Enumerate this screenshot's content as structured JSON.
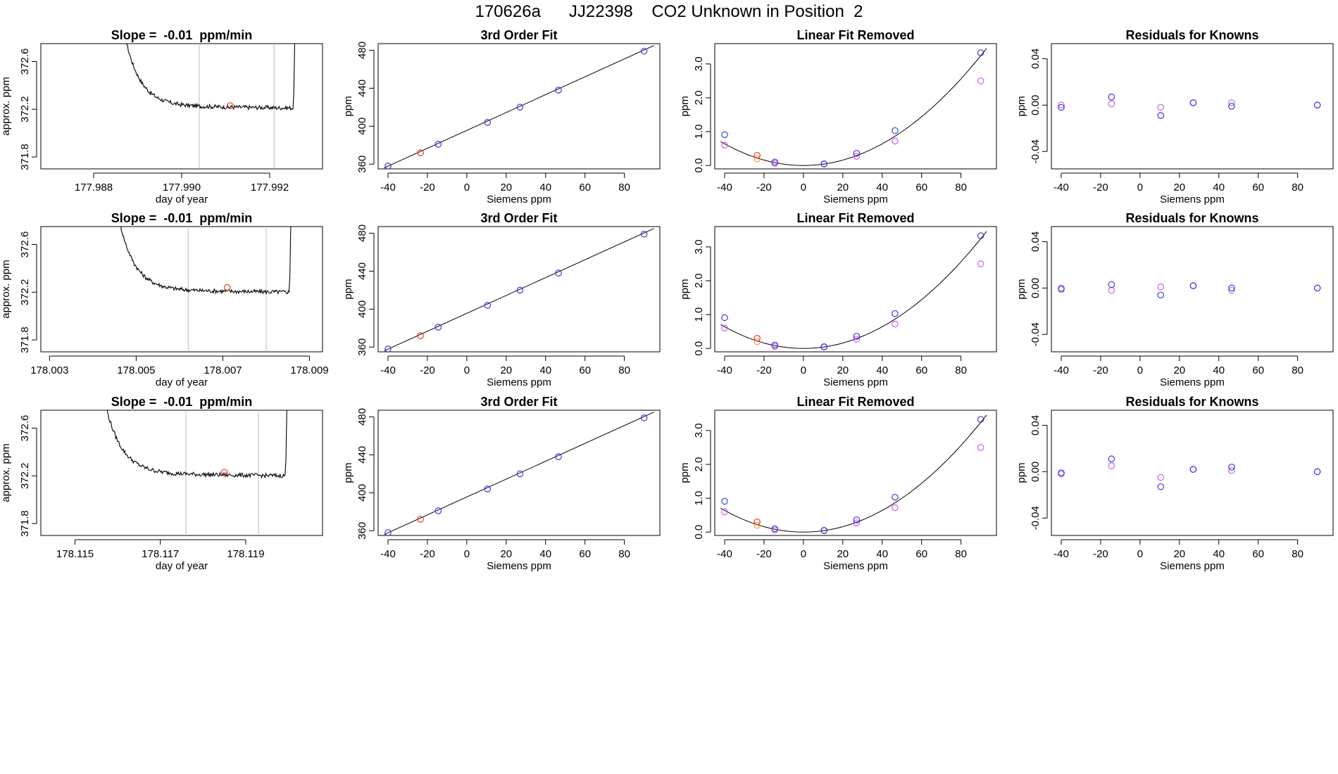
{
  "title": "170626a      JJ22398    CO2 Unknown in Position  2",
  "colors": {
    "line": "#000000",
    "unknown": "#e8392c",
    "known": "#3b3bdc",
    "magenta": "#d062e8",
    "orange": "#f5a04a",
    "vline": "#bdbdbd"
  },
  "chart_data": [
    {
      "row": 0,
      "panel": "timeseries",
      "type": "line",
      "title": "Slope =  -0.01  ppm/min",
      "xlabel": "day of year",
      "ylabel": "approx. ppm",
      "xlim": [
        177.9868,
        177.9932
      ],
      "ylim": [
        371.7,
        372.75
      ],
      "xticks": [
        177.988,
        177.99,
        177.992
      ],
      "xtick_labels": [
        "177.988",
        "177.990",
        "177.992"
      ],
      "yticks": [
        371.8,
        372.2,
        372.6
      ],
      "ytick_labels": [
        "371.8",
        "372.2",
        "372.6"
      ],
      "vlines": [
        177.9904,
        177.9921
      ],
      "t_start": 177.9887,
      "t_end": 177.9926,
      "level": 372.23,
      "marker": {
        "x": 177.9911,
        "y": 372.23
      }
    },
    {
      "row": 0,
      "panel": "fit",
      "type": "scatter",
      "title": "3rd Order Fit",
      "xlabel": "Siemens ppm",
      "ylabel": "ppm",
      "xlim": [
        -45,
        98
      ],
      "ylim": [
        355,
        487
      ],
      "xticks": [
        -40,
        -20,
        0,
        20,
        40,
        60,
        80
      ],
      "yticks": [
        360,
        400,
        440,
        480
      ],
      "line": [
        [
          -42,
          356
        ],
        [
          95,
          485
        ]
      ],
      "knowns": [
        {
          "x": -40,
          "y": 358
        },
        {
          "x": -14.5,
          "y": 381
        },
        {
          "x": 10.5,
          "y": 404
        },
        {
          "x": 27,
          "y": 420
        },
        {
          "x": 46.5,
          "y": 438
        },
        {
          "x": 90,
          "y": 479
        }
      ],
      "unknown": {
        "x": -23.5,
        "y": 372
      }
    },
    {
      "row": 0,
      "panel": "linear_removed",
      "type": "scatter",
      "title": "Linear Fit Removed",
      "xlabel": "Siemens ppm",
      "ylabel": "ppm",
      "xlim": [
        -45,
        98
      ],
      "ylim": [
        -0.1,
        3.6
      ],
      "xticks": [
        -40,
        -20,
        0,
        20,
        40,
        60,
        80
      ],
      "yticks": [
        0.0,
        1.0,
        2.0,
        3.0
      ],
      "ytick_labels": [
        "0.0",
        "1.0",
        "2.0",
        "3.0"
      ],
      "curve_k": 0.0004,
      "knowns": [
        {
          "x": -40,
          "y": 0.91
        },
        {
          "x": -14.5,
          "y": 0.1
        },
        {
          "x": 10.5,
          "y": 0.05
        },
        {
          "x": 27,
          "y": 0.36
        },
        {
          "x": 46.5,
          "y": 1.03
        },
        {
          "x": 90,
          "y": 3.33
        }
      ],
      "magenta": [
        {
          "x": -40,
          "y": 0.6
        },
        {
          "x": -14.5,
          "y": 0.06
        },
        {
          "x": 10.5,
          "y": 0.04
        },
        {
          "x": 27,
          "y": 0.27
        },
        {
          "x": 46.5,
          "y": 0.72
        },
        {
          "x": 90,
          "y": 2.5
        }
      ],
      "unknown": {
        "x": -23.5,
        "y": 0.3
      },
      "orange": {
        "x": -23.5,
        "y": 0.2
      }
    },
    {
      "row": 0,
      "panel": "residuals",
      "type": "scatter",
      "title": "Residuals for Knowns",
      "xlabel": "Siemens ppm",
      "ylabel": "ppm",
      "xlim": [
        -45,
        98
      ],
      "ylim": [
        -0.055,
        0.053
      ],
      "xticks": [
        -40,
        -20,
        0,
        20,
        40,
        60,
        80
      ],
      "yticks": [
        -0.04,
        0.0,
        0.04
      ],
      "ytick_labels": [
        "-0.04",
        "0.00",
        "0.04"
      ],
      "knowns": [
        {
          "x": -40,
          "y": -0.002
        },
        {
          "x": -14.5,
          "y": 0.007
        },
        {
          "x": 10.5,
          "y": -0.009
        },
        {
          "x": 27,
          "y": 0.002
        },
        {
          "x": 46.5,
          "y": -0.001
        },
        {
          "x": 90,
          "y": 0.0
        }
      ],
      "magenta": [
        {
          "x": -40,
          "y": 0.0
        },
        {
          "x": -14.5,
          "y": 0.001
        },
        {
          "x": 10.5,
          "y": -0.002
        },
        {
          "x": 27,
          "y": 0.002
        },
        {
          "x": 46.5,
          "y": 0.002
        },
        {
          "x": 90,
          "y": 0.0
        }
      ]
    },
    {
      "row": 1,
      "panel": "timeseries",
      "type": "line",
      "title": "Slope =  -0.01  ppm/min",
      "xlabel": "day of year",
      "ylabel": "approx. ppm",
      "xlim": [
        178.0028,
        178.0093
      ],
      "ylim": [
        371.7,
        372.75
      ],
      "xticks": [
        178.003,
        178.005,
        178.007,
        178.009
      ],
      "xtick_labels": [
        "178.003",
        "178.005",
        "178.007",
        "178.009"
      ],
      "yticks": [
        371.8,
        372.2,
        372.6
      ],
      "ytick_labels": [
        "371.8",
        "372.2",
        "372.6"
      ],
      "vlines": [
        178.0062,
        178.008
      ],
      "t_start": 178.0046,
      "t_end": 178.0086,
      "level": 372.22,
      "marker": {
        "x": 178.0071,
        "y": 372.24
      }
    },
    {
      "row": 1,
      "panel": "fit",
      "type": "scatter",
      "title": "3rd Order Fit",
      "xlabel": "Siemens ppm",
      "ylabel": "ppm",
      "xlim": [
        -45,
        98
      ],
      "ylim": [
        355,
        487
      ],
      "xticks": [
        -40,
        -20,
        0,
        20,
        40,
        60,
        80
      ],
      "yticks": [
        360,
        400,
        440,
        480
      ],
      "line": [
        [
          -42,
          356
        ],
        [
          95,
          485
        ]
      ],
      "knowns": [
        {
          "x": -40,
          "y": 358
        },
        {
          "x": -14.5,
          "y": 381
        },
        {
          "x": 10.5,
          "y": 404
        },
        {
          "x": 27,
          "y": 420
        },
        {
          "x": 46.5,
          "y": 438
        },
        {
          "x": 90,
          "y": 479
        }
      ],
      "unknown": {
        "x": -23.5,
        "y": 372
      }
    },
    {
      "row": 1,
      "panel": "linear_removed",
      "type": "scatter",
      "title": "Linear Fit Removed",
      "xlabel": "Siemens ppm",
      "ylabel": "ppm",
      "xlim": [
        -45,
        98
      ],
      "ylim": [
        -0.1,
        3.6
      ],
      "xticks": [
        -40,
        -20,
        0,
        20,
        40,
        60,
        80
      ],
      "yticks": [
        0.0,
        1.0,
        2.0,
        3.0
      ],
      "ytick_labels": [
        "0.0",
        "1.0",
        "2.0",
        "3.0"
      ],
      "curve_k": 0.0004,
      "knowns": [
        {
          "x": -40,
          "y": 0.91
        },
        {
          "x": -14.5,
          "y": 0.1
        },
        {
          "x": 10.5,
          "y": 0.05
        },
        {
          "x": 27,
          "y": 0.36
        },
        {
          "x": 46.5,
          "y": 1.03
        },
        {
          "x": 90,
          "y": 3.33
        }
      ],
      "magenta": [
        {
          "x": -40,
          "y": 0.6
        },
        {
          "x": -14.5,
          "y": 0.06
        },
        {
          "x": 10.5,
          "y": 0.04
        },
        {
          "x": 27,
          "y": 0.27
        },
        {
          "x": 46.5,
          "y": 0.72
        },
        {
          "x": 90,
          "y": 2.5
        }
      ],
      "unknown": {
        "x": -23.5,
        "y": 0.3
      },
      "orange": {
        "x": -23.5,
        "y": 0.2
      }
    },
    {
      "row": 1,
      "panel": "residuals",
      "type": "scatter",
      "title": "Residuals for Knowns",
      "xlabel": "Siemens ppm",
      "ylabel": "ppm",
      "xlim": [
        -45,
        98
      ],
      "ylim": [
        -0.055,
        0.053
      ],
      "xticks": [
        -40,
        -20,
        0,
        20,
        40,
        60,
        80
      ],
      "yticks": [
        -0.04,
        0.0,
        0.04
      ],
      "ytick_labels": [
        "-0.04",
        "0.00",
        "0.04"
      ],
      "knowns": [
        {
          "x": -40,
          "y": -0.001
        },
        {
          "x": -14.5,
          "y": 0.003
        },
        {
          "x": 10.5,
          "y": -0.006
        },
        {
          "x": 27,
          "y": 0.002
        },
        {
          "x": 46.5,
          "y": 0.0
        },
        {
          "x": 90,
          "y": 0.0
        }
      ],
      "magenta": [
        {
          "x": -40,
          "y": 0.0
        },
        {
          "x": -14.5,
          "y": -0.002
        },
        {
          "x": 10.5,
          "y": 0.001
        },
        {
          "x": 27,
          "y": 0.002
        },
        {
          "x": 46.5,
          "y": -0.002
        },
        {
          "x": 90,
          "y": 0.0
        }
      ]
    },
    {
      "row": 2,
      "panel": "timeseries",
      "type": "line",
      "title": "Slope =  -0.01  ppm/min",
      "xlabel": "day of year",
      "ylabel": "approx. ppm",
      "xlim": [
        178.1142,
        178.1208
      ],
      "ylim": [
        371.7,
        372.75
      ],
      "xticks": [
        178.115,
        178.117,
        178.119
      ],
      "xtick_labels": [
        "178.115",
        "178.117",
        "178.119"
      ],
      "yticks": [
        371.8,
        372.2,
        372.6
      ],
      "ytick_labels": [
        "371.8",
        "372.2",
        "372.6"
      ],
      "vlines": [
        178.1176,
        178.1193
      ],
      "t_start": 178.1157,
      "t_end": 178.12,
      "level": 372.22,
      "marker": {
        "x": 178.1185,
        "y": 372.23
      }
    },
    {
      "row": 2,
      "panel": "fit",
      "type": "scatter",
      "title": "3rd Order Fit",
      "xlabel": "Siemens ppm",
      "ylabel": "ppm",
      "xlim": [
        -45,
        98
      ],
      "ylim": [
        355,
        487
      ],
      "xticks": [
        -40,
        -20,
        0,
        20,
        40,
        60,
        80
      ],
      "yticks": [
        360,
        400,
        440,
        480
      ],
      "line": [
        [
          -42,
          356
        ],
        [
          95,
          485
        ]
      ],
      "knowns": [
        {
          "x": -40,
          "y": 358
        },
        {
          "x": -14.5,
          "y": 381
        },
        {
          "x": 10.5,
          "y": 404
        },
        {
          "x": 27,
          "y": 420
        },
        {
          "x": 46.5,
          "y": 438
        },
        {
          "x": 90,
          "y": 479
        }
      ],
      "unknown": {
        "x": -23.5,
        "y": 372
      }
    },
    {
      "row": 2,
      "panel": "linear_removed",
      "type": "scatter",
      "title": "Linear Fit Removed",
      "xlabel": "Siemens ppm",
      "ylabel": "ppm",
      "xlim": [
        -45,
        98
      ],
      "ylim": [
        -0.1,
        3.6
      ],
      "xticks": [
        -40,
        -20,
        0,
        20,
        40,
        60,
        80
      ],
      "yticks": [
        0.0,
        1.0,
        2.0,
        3.0
      ],
      "ytick_labels": [
        "0.0",
        "1.0",
        "2.0",
        "3.0"
      ],
      "curve_k": 0.0004,
      "knowns": [
        {
          "x": -40,
          "y": 0.91
        },
        {
          "x": -14.5,
          "y": 0.1
        },
        {
          "x": 10.5,
          "y": 0.05
        },
        {
          "x": 27,
          "y": 0.36
        },
        {
          "x": 46.5,
          "y": 1.03
        },
        {
          "x": 90,
          "y": 3.33
        }
      ],
      "magenta": [
        {
          "x": -40,
          "y": 0.6
        },
        {
          "x": -14.5,
          "y": 0.06
        },
        {
          "x": 10.5,
          "y": 0.04
        },
        {
          "x": 27,
          "y": 0.27
        },
        {
          "x": 46.5,
          "y": 0.72
        },
        {
          "x": 90,
          "y": 2.5
        }
      ],
      "unknown": {
        "x": -23.5,
        "y": 0.3
      },
      "orange": {
        "x": -23.5,
        "y": 0.2
      }
    },
    {
      "row": 2,
      "panel": "residuals",
      "type": "scatter",
      "title": "Residuals for Knowns",
      "xlabel": "Siemens ppm",
      "ylabel": "ppm",
      "xlim": [
        -45,
        98
      ],
      "ylim": [
        -0.055,
        0.053
      ],
      "xticks": [
        -40,
        -20,
        0,
        20,
        40,
        60,
        80
      ],
      "yticks": [
        -0.04,
        0.0,
        0.04
      ],
      "ytick_labels": [
        "-0.04",
        "0.00",
        "0.04"
      ],
      "knowns": [
        {
          "x": -40,
          "y": -0.001
        },
        {
          "x": -14.5,
          "y": 0.011
        },
        {
          "x": 10.5,
          "y": -0.013
        },
        {
          "x": 27,
          "y": 0.002
        },
        {
          "x": 46.5,
          "y": 0.004
        },
        {
          "x": 90,
          "y": 0.0
        }
      ],
      "magenta": [
        {
          "x": -40,
          "y": -0.002
        },
        {
          "x": -14.5,
          "y": 0.005
        },
        {
          "x": 10.5,
          "y": -0.005
        },
        {
          "x": 27,
          "y": 0.002
        },
        {
          "x": 46.5,
          "y": 0.001
        },
        {
          "x": 90,
          "y": 0.0
        }
      ]
    }
  ]
}
